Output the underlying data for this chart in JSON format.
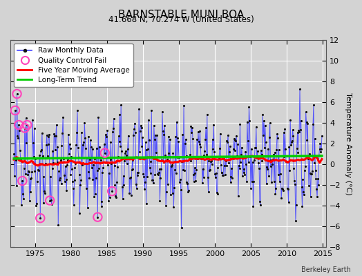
{
  "title": "BARNSTABLE MUNI BOA",
  "subtitle": "41.668 N, 70.274 W (United States)",
  "ylabel": "Temperature Anomaly (°C)",
  "watermark": "Berkeley Earth",
  "ylim": [
    -8,
    12
  ],
  "xlim": [
    1971.5,
    2015.5
  ],
  "yticks": [
    -8,
    -6,
    -4,
    -2,
    0,
    2,
    4,
    6,
    8,
    10,
    12
  ],
  "xticks": [
    1975,
    1980,
    1985,
    1990,
    1995,
    2000,
    2005,
    2010,
    2015
  ],
  "bg_color": "#d3d3d3",
  "grid_color": "#ffffff",
  "line_color": "#4444ff",
  "dot_color": "#111111",
  "moving_avg_color": "#ff0000",
  "trend_color": "#00cc00",
  "qc_fail_color": "#ff44bb",
  "seed": 42,
  "n_months": 516,
  "start_year": 1972,
  "trend_slope": 0.006,
  "trend_intercept": 0.55,
  "qc_fail_indices": [
    2,
    5,
    8,
    14,
    18,
    22,
    44,
    60,
    140,
    152,
    164
  ]
}
